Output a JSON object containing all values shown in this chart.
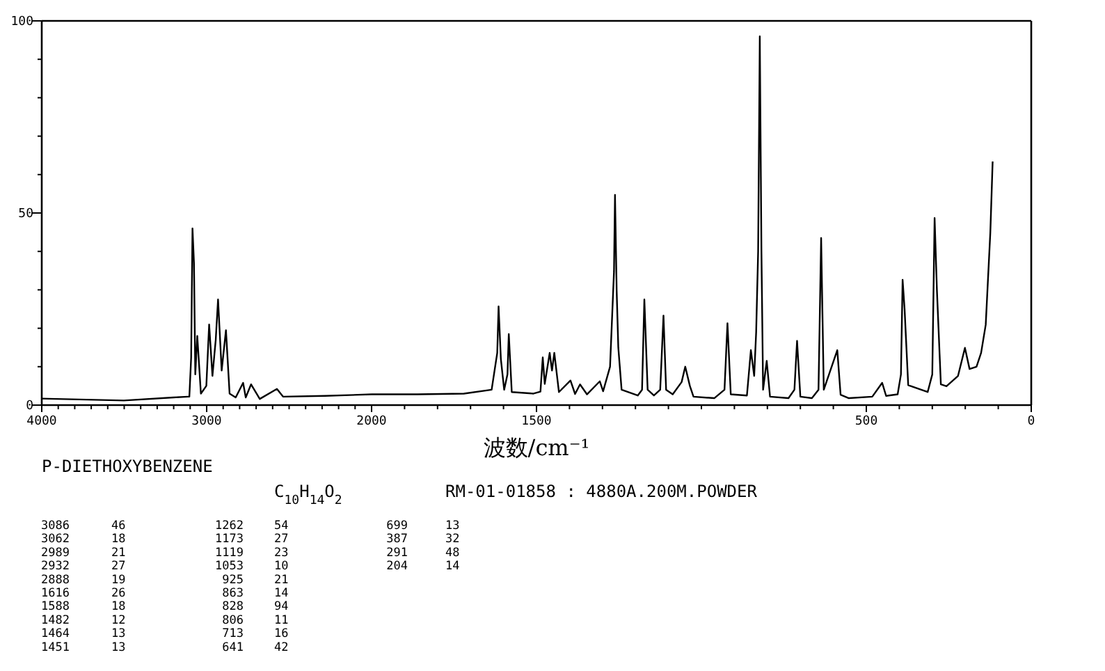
{
  "chart_data": [
    {
      "type": "line",
      "title": "P-DIETHOXYBENZENE",
      "subtitle": "C$_{10}$H$_{14}$O$_{2}$",
      "annotations": [
        "RM-01-01858 : 4880A.200M.POWDER",
        "3086",
        "46",
        "3062",
        "18",
        "2989",
        "21",
        "2932",
        "27",
        "2888",
        "19",
        "1616",
        "26",
        "1588",
        "18",
        "1482",
        "12",
        "1464",
        "13",
        "1451",
        "13",
        "1262",
        "54",
        "1173",
        "27",
        "1119",
        "23",
        "1053",
        "10",
        "925",
        "21",
        "863",
        "14",
        "828",
        "94",
        "806",
        "11",
        "713",
        "16",
        "641",
        "42",
        "699",
        "13",
        "387",
        "32",
        "291",
        "48",
        "204",
        "14"
      ],
      "color": "#000000",
      "x": [
        4000,
        3502,
        3201,
        3114,
        3105,
        3094,
        3086,
        3077,
        3069,
        3057,
        3035,
        3002,
        2985,
        2965,
        2945,
        2931,
        2909,
        2883,
        2861,
        2824,
        2779,
        2763,
        2731,
        2678,
        2574,
        2537,
        2284,
        2000
      ],
      "values": [
        1.7,
        1.2,
        2,
        2.2,
        2.2,
        12.4,
        46,
        37,
        8,
        18,
        3,
        5,
        21,
        7.6,
        17,
        27.5,
        9,
        19.5,
        3,
        2,
        5.8,
        2,
        5.4,
        1.6,
        4.2,
        2.2,
        2.4,
        2.8
      ],
      "xlim": [
        4000,
        2000
      ],
      "xticks": [
        4000,
        {
          "value": 3900,
          "label": null
        },
        {
          "value": 3800,
          "label": null
        },
        {
          "value": 3700,
          "label": null
        },
        {
          "value": 3600,
          "label": null
        },
        {
          "value": 3500,
          "label": null
        },
        {
          "value": 3400,
          "label": null
        },
        {
          "value": 3300,
          "label": null
        },
        {
          "value": 3200,
          "label": null
        },
        {
          "value": 3100,
          "label": null
        },
        3000,
        {
          "value": 2900,
          "label": null
        },
        {
          "value": 2800,
          "label": null
        },
        {
          "value": 2700,
          "label": null
        },
        {
          "value": 2600,
          "label": null
        },
        {
          "value": 2500,
          "label": null
        },
        {
          "value": 2400,
          "label": null
        },
        {
          "value": 2300,
          "label": null
        },
        {
          "value": 2200,
          "label": null
        },
        {
          "value": 2100,
          "label": null
        },
        2000
      ],
      "ylim": [
        0,
        100
      ],
      "yticks": [
        0,
        {
          "value": 10,
          "label": null
        },
        {
          "value": 20,
          "label": null
        },
        {
          "value": 30,
          "label": null
        },
        {
          "value": 40,
          "label": null
        },
        50,
        {
          "value": 60,
          "label": null
        },
        {
          "value": 70,
          "label": null
        },
        {
          "value": 80,
          "label": null
        },
        {
          "value": 90,
          "label": null
        },
        100
      ]
    },
    {
      "type": "line",
      "xlabel": "波数/cm⁻¹",
      "color": "#000000",
      "x": [
        2000,
        1861,
        1720,
        1636,
        1619,
        1615,
        1608,
        1598,
        1588,
        1584,
        1575,
        1509,
        1488,
        1481,
        1475,
        1460,
        1453,
        1446,
        1432,
        1397,
        1383,
        1368,
        1347,
        1308,
        1298,
        1277,
        1265,
        1262,
        1257,
        1252,
        1242,
        1193,
        1180,
        1173,
        1163,
        1144,
        1125,
        1115,
        1107,
        1087,
        1060,
        1049,
        1035,
        1024,
        961,
        930,
        921,
        911,
        862,
        850,
        840,
        834,
        828,
        823,
        818,
        813,
        802,
        792,
        736,
        718,
        710,
        700,
        665,
        645,
        637,
        629,
        588,
        578,
        553,
        482,
        452,
        440,
        405,
        395,
        390,
        384,
        373,
        314,
        300,
        293,
        286,
        274,
        257,
        222,
        201,
        187,
        166,
        152,
        138,
        124,
        117
      ],
      "values": [
        2.8,
        2.8,
        3,
        4,
        13.6,
        25.7,
        12,
        4,
        8,
        18.5,
        3.4,
        3,
        3.5,
        12.4,
        5.5,
        13.6,
        9,
        13.6,
        3.4,
        6.4,
        2.9,
        5.4,
        2.8,
        6.2,
        3.6,
        10,
        34.8,
        54.7,
        30,
        15,
        4,
        2.5,
        4,
        27.5,
        4,
        2.5,
        4,
        23.3,
        4,
        2.8,
        6,
        10,
        5,
        2.2,
        1.8,
        4,
        21.3,
        2.8,
        2.5,
        14.3,
        7.6,
        19,
        40,
        96,
        40,
        4,
        11.5,
        2.2,
        1.8,
        4,
        16.7,
        2.2,
        1.8,
        4,
        43.5,
        4,
        14.3,
        2.7,
        1.8,
        2.2,
        5.8,
        2.4,
        2.8,
        8,
        32.6,
        25,
        5.2,
        3.4,
        8,
        48.7,
        30,
        5.4,
        4.9,
        7.6,
        14.9,
        9.4,
        10,
        13.6,
        20.9,
        45,
        63.4
      ],
      "xlim": [
        2000,
        0
      ],
      "xticks": [
        {
          "value": 1900,
          "label": null
        },
        {
          "value": 1800,
          "label": null
        },
        {
          "value": 1700,
          "label": null
        },
        {
          "value": 1600,
          "label": null
        },
        1500,
        {
          "value": 1400,
          "label": null
        },
        {
          "value": 1300,
          "label": null
        },
        {
          "value": 1200,
          "label": null
        },
        {
          "value": 1100,
          "label": null
        },
        {
          "value": 1000,
          "label": null
        },
        {
          "value": 900,
          "label": null
        },
        {
          "value": 800,
          "label": null
        },
        {
          "value": 700,
          "label": null
        },
        {
          "value": 600,
          "label": null
        },
        500,
        {
          "value": 400,
          "label": null
        },
        {
          "value": 300,
          "label": null
        },
        {
          "value": 200,
          "label": null
        },
        {
          "value": 100,
          "label": null
        },
        0
      ],
      "ylim": [
        0,
        100
      ],
      "tick_labels": "x"
    }
  ]
}
